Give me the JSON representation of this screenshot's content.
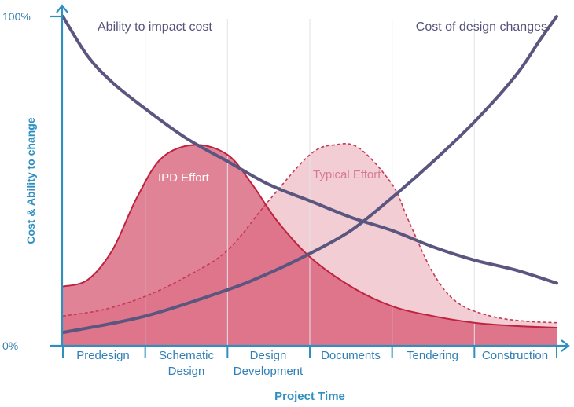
{
  "chart_data": {
    "type": "line",
    "title": "",
    "xlabel": "Project Time",
    "ylabel": "Cost & Ability to change",
    "y_ticks": [
      "0%",
      "100%"
    ],
    "ylim": [
      0,
      100
    ],
    "xlim": [
      0,
      6
    ],
    "grid": "vertical phase separators",
    "categories": [
      "Predesign",
      "Schematic Design",
      "Design Development",
      "Documents",
      "Tendering",
      "Construction"
    ],
    "series": [
      {
        "name": "Ability to impact cost",
        "kind": "line",
        "color": "#5a5680",
        "points": [
          [
            0,
            100
          ],
          [
            0.3,
            88
          ],
          [
            0.6,
            80
          ],
          [
            1,
            72
          ],
          [
            1.5,
            63
          ],
          [
            2,
            56
          ],
          [
            2.5,
            49
          ],
          [
            3,
            44
          ],
          [
            3.5,
            39
          ],
          [
            4,
            35
          ],
          [
            4.5,
            30
          ],
          [
            5,
            26
          ],
          [
            5.5,
            23
          ],
          [
            6,
            19
          ]
        ]
      },
      {
        "name": "Cost of design changes",
        "kind": "line",
        "color": "#5a5680",
        "points": [
          [
            0,
            4
          ],
          [
            1,
            9
          ],
          [
            2,
            17
          ],
          [
            2.5,
            22
          ],
          [
            3,
            28
          ],
          [
            3.5,
            35
          ],
          [
            4,
            45
          ],
          [
            4.5,
            56
          ],
          [
            5,
            68
          ],
          [
            5.5,
            82
          ],
          [
            5.8,
            93
          ],
          [
            6,
            100
          ]
        ]
      },
      {
        "name": "IPD Effort",
        "kind": "area",
        "color": "#c9415d",
        "points": [
          [
            0,
            18
          ],
          [
            0.3,
            20
          ],
          [
            0.6,
            29
          ],
          [
            0.9,
            45
          ],
          [
            1.2,
            57
          ],
          [
            1.6,
            61
          ],
          [
            2,
            58
          ],
          [
            2.3,
            49
          ],
          [
            2.6,
            38
          ],
          [
            3,
            27
          ],
          [
            3.5,
            18
          ],
          [
            4,
            12
          ],
          [
            4.5,
            9
          ],
          [
            5,
            7
          ],
          [
            5.5,
            6
          ],
          [
            6,
            5.5
          ]
        ]
      },
      {
        "name": "Typical Effort",
        "kind": "area",
        "color": "#e8a3b1",
        "points": [
          [
            0,
            9
          ],
          [
            0.5,
            11
          ],
          [
            1,
            15
          ],
          [
            1.5,
            21
          ],
          [
            2,
            29
          ],
          [
            2.5,
            44
          ],
          [
            3,
            58
          ],
          [
            3.3,
            61
          ],
          [
            3.6,
            60
          ],
          [
            4,
            49
          ],
          [
            4.2,
            38
          ],
          [
            4.5,
            22
          ],
          [
            4.8,
            13
          ],
          [
            5.2,
            9
          ],
          [
            5.6,
            7.5
          ],
          [
            6,
            7
          ]
        ]
      }
    ]
  }
}
